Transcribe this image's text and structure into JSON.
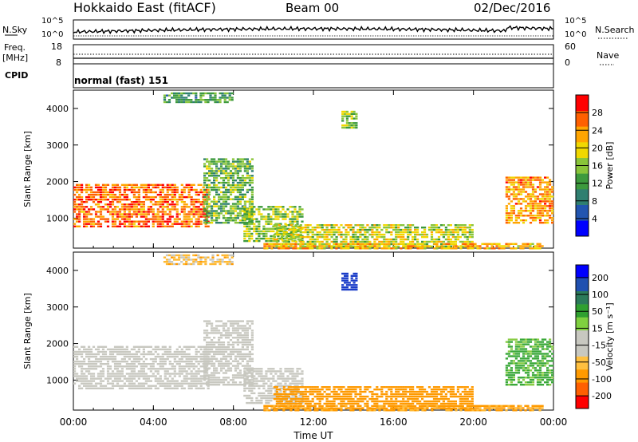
{
  "header": {
    "title": "Hokkaido East (fitACF)",
    "beam": "Beam 00",
    "date": "02/Dec/2016"
  },
  "nsky_panel": {
    "left_label": "N.Sky",
    "right_label": "N.Search",
    "ticks_left": [
      "10^5",
      "10^0"
    ],
    "ticks_right": [
      "10^5",
      "10^0"
    ]
  },
  "freq_panel": {
    "left_label_line1": "Freq.",
    "left_label_line2": "[MHz]",
    "right_label": "Nave",
    "ticks_left": [
      "18",
      "8"
    ],
    "ticks_right": [
      "60",
      "0"
    ]
  },
  "cpid_panel": {
    "label": "CPID",
    "value": "normal (fast) 151"
  },
  "colors": {
    "power_scale": [
      "#0000ff",
      "#2255b0",
      "#2f7f70",
      "#3d9a3d",
      "#89c53a",
      "#f0d800",
      "#ffa500",
      "#ff6000",
      "#ff0000"
    ],
    "velocity_scale": [
      "#ff0000",
      "#ff6000",
      "#ff9a00",
      "#ffc040",
      "#c8c8c0",
      "#c8c8c0",
      "#7fd040",
      "#30a030",
      "#2b7a5a",
      "#2050b0",
      "#0000ff"
    ]
  },
  "chart_data": [
    {
      "type": "heatmap",
      "name": "power",
      "ylabel": "Slant Range [km]",
      "ylim": [
        180,
        4500
      ],
      "yticks": [
        "1000",
        "2000",
        "3000",
        "4000"
      ],
      "xlim": [
        0,
        24
      ],
      "colorbar": {
        "label": "Power [dB]",
        "range": [
          0,
          32
        ],
        "ticks": [
          "4",
          "8",
          "12",
          "16",
          "20",
          "24",
          "28"
        ]
      },
      "regions": [
        {
          "t0": 0.0,
          "t1": 6.8,
          "r0": 800,
          "r1": 2000,
          "value": 26,
          "note": "dense echo band"
        },
        {
          "t0": 6.5,
          "t1": 9.0,
          "r0": 900,
          "r1": 2700,
          "value": 14
        },
        {
          "t0": 8.5,
          "t1": 11.5,
          "r0": 400,
          "r1": 1400,
          "value": 16
        },
        {
          "t0": 10.0,
          "t1": 20.0,
          "r0": 250,
          "r1": 900,
          "value": 18
        },
        {
          "t0": 9.5,
          "t1": 23.5,
          "r0": 200,
          "r1": 380,
          "value": 22
        },
        {
          "t0": 21.6,
          "t1": 24.0,
          "r0": 900,
          "r1": 2200,
          "value": 24
        },
        {
          "t0": 13.4,
          "t1": 14.2,
          "r0": 3500,
          "r1": 4000,
          "value": 16
        },
        {
          "t0": 4.5,
          "t1": 8.0,
          "r0": 4200,
          "r1": 4500,
          "value": 12
        }
      ]
    },
    {
      "type": "heatmap",
      "name": "velocity",
      "ylabel": "Slant Range [km]",
      "ylim": [
        180,
        4500
      ],
      "yticks": [
        "1000",
        "2000",
        "3000",
        "4000"
      ],
      "xlim": [
        0,
        24
      ],
      "xticks": [
        "00:00",
        "04:00",
        "08:00",
        "12:00",
        "16:00",
        "20:00",
        "00:00"
      ],
      "xlabel": "Time UT",
      "colorbar": {
        "label": "Velocity [m s⁻¹]",
        "ticks": [
          "200",
          "100",
          "50",
          "15",
          "-15",
          "-50",
          "-100",
          "-200"
        ]
      },
      "regions": [
        {
          "t0": 0.0,
          "t1": 6.8,
          "r0": 800,
          "r1": 2000,
          "value": 0
        },
        {
          "t0": 6.5,
          "t1": 9.0,
          "r0": 900,
          "r1": 2700,
          "value": 0
        },
        {
          "t0": 8.5,
          "t1": 11.5,
          "r0": 400,
          "r1": 1400,
          "value": 0
        },
        {
          "t0": 10.0,
          "t1": 20.0,
          "r0": 250,
          "r1": 900,
          "value": -60
        },
        {
          "t0": 9.5,
          "t1": 23.5,
          "r0": 200,
          "r1": 380,
          "value": -40
        },
        {
          "t0": 21.6,
          "t1": 24.0,
          "r0": 900,
          "r1": 2200,
          "value": 40
        },
        {
          "t0": 13.4,
          "t1": 14.2,
          "r0": 3500,
          "r1": 4000,
          "value": 220
        },
        {
          "t0": 4.5,
          "t1": 8.0,
          "r0": 4200,
          "r1": 4500,
          "value": -20
        }
      ]
    }
  ]
}
